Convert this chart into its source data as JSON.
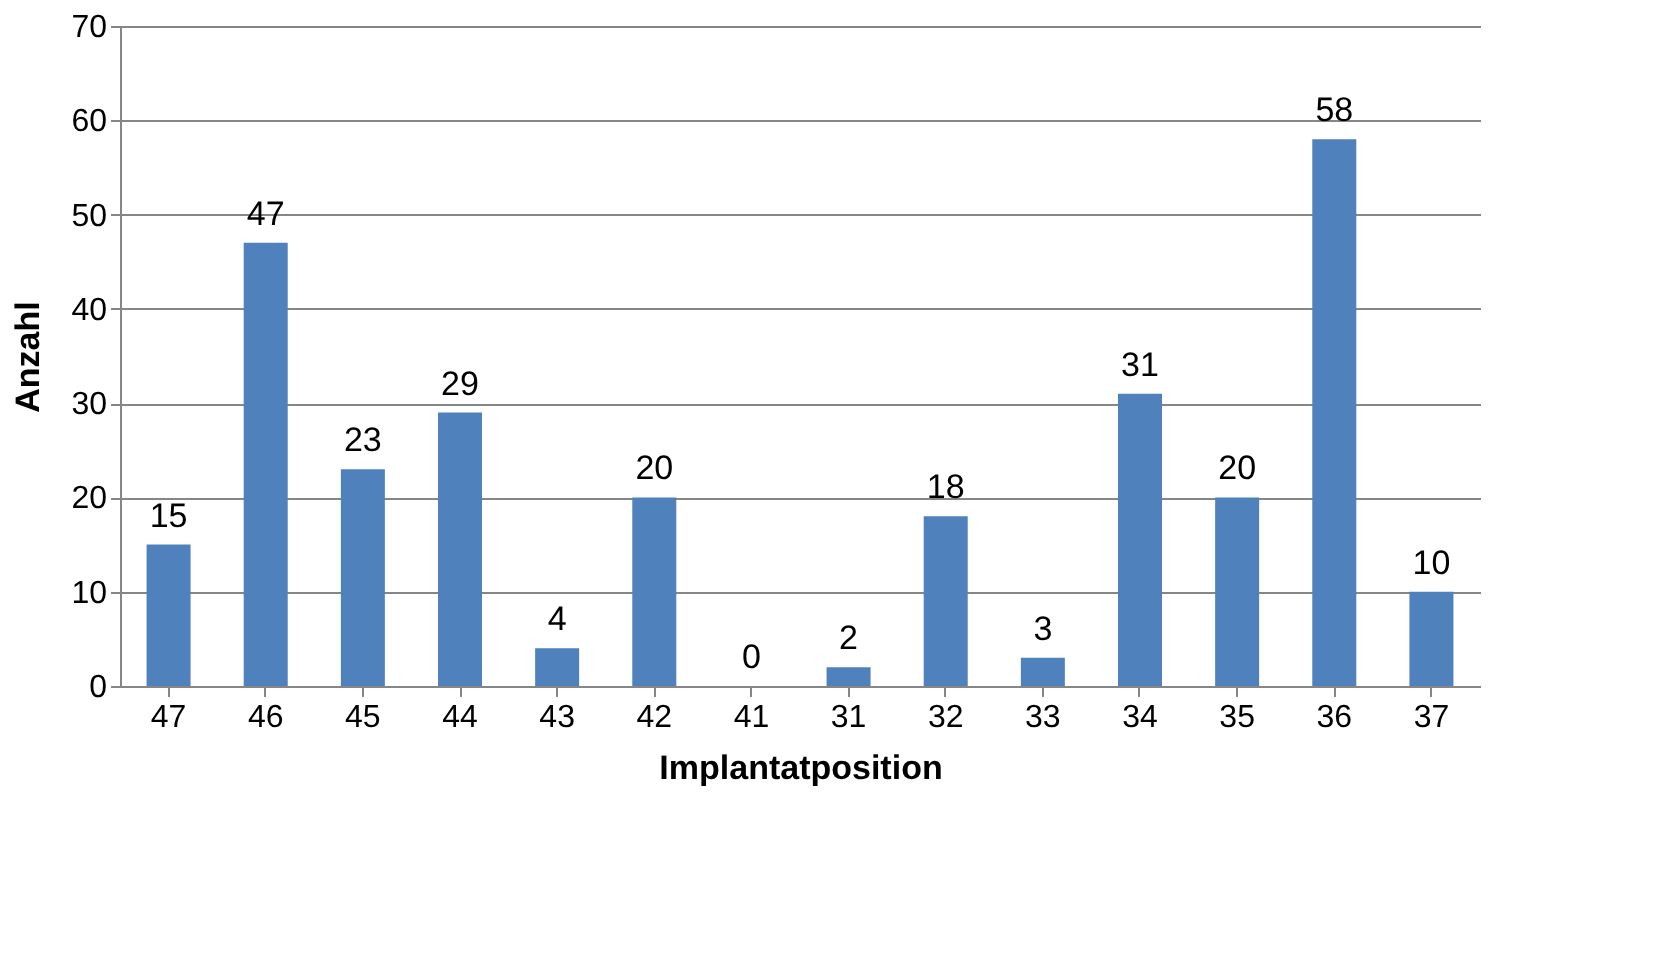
{
  "chart_data": {
    "type": "bar",
    "xlabel": "Implantatposition",
    "ylabel": "Anzahl",
    "categories": [
      "47",
      "46",
      "45",
      "44",
      "43",
      "42",
      "41",
      "31",
      "32",
      "33",
      "34",
      "35",
      "36",
      "37"
    ],
    "values": [
      15,
      47,
      23,
      29,
      4,
      20,
      0,
      2,
      18,
      3,
      31,
      20,
      58,
      10
    ],
    "color": "#4f81bd",
    "ylim": [
      0,
      70
    ],
    "yticks": [
      0,
      10,
      20,
      30,
      40,
      50,
      60,
      70
    ],
    "grid": "y",
    "data_labels": true
  }
}
